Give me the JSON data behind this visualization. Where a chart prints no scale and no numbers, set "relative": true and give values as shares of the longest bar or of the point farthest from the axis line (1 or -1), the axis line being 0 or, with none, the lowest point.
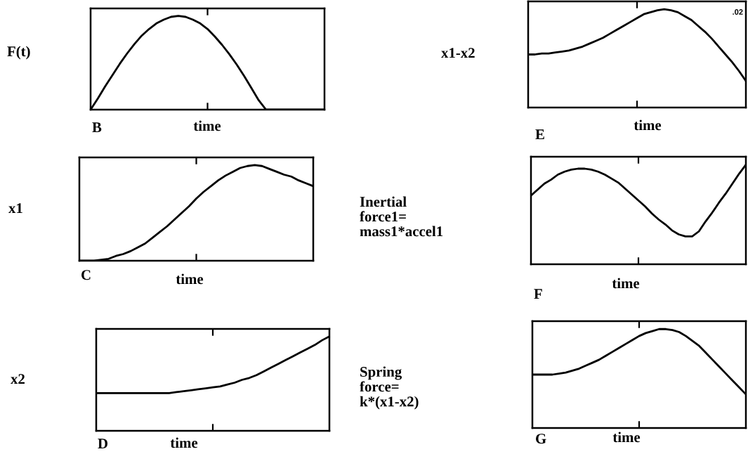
{
  "chart_data": [
    {
      "type": "line",
      "relative": true,
      "ylabel": "F(t)",
      "xlabel": "time",
      "annotations": [
        "B"
      ],
      "categories": [
        null,
        null,
        null,
        null,
        null,
        null,
        null,
        null,
        null,
        null,
        null,
        null,
        null,
        null,
        null,
        null,
        null,
        null,
        null,
        null,
        null,
        null,
        null,
        null,
        null,
        null,
        null,
        null,
        null,
        null,
        null,
        null,
        null
      ],
      "series": [
        {
          "color": "#000000",
          "values": [
            0,
            0.12,
            0.25,
            0.37,
            0.49,
            0.6,
            0.7,
            0.79,
            0.86,
            0.92,
            0.96,
            0.99,
            1,
            0.99,
            0.96,
            0.92,
            0.86,
            0.78,
            0.69,
            0.59,
            0.48,
            0.36,
            0.23,
            0.1,
            0,
            0,
            0,
            0,
            0,
            0,
            0,
            0,
            0
          ]
        }
      ]
    },
    {
      "type": "line",
      "relative": true,
      "ylabel": "x1",
      "xlabel": "time",
      "annotations": [
        "C"
      ],
      "categories": [
        null,
        null,
        null,
        null,
        null,
        null,
        null,
        null,
        null,
        null,
        null,
        null,
        null,
        null,
        null,
        null,
        null,
        null,
        null,
        null,
        null,
        null,
        null,
        null,
        null,
        null,
        null,
        null,
        null,
        null,
        null,
        null,
        null
      ],
      "series": [
        {
          "color": "#000000",
          "values": [
            0,
            0,
            0,
            0.01,
            0.02,
            0.05,
            0.07,
            0.1,
            0.14,
            0.18,
            0.24,
            0.3,
            0.36,
            0.43,
            0.5,
            0.57,
            0.65,
            0.72,
            0.78,
            0.84,
            0.89,
            0.93,
            0.97,
            0.99,
            1,
            0.99,
            0.96,
            0.93,
            0.9,
            0.88,
            0.84,
            0.81,
            0.78
          ]
        }
      ]
    },
    {
      "type": "line",
      "relative": true,
      "ylabel": "x2",
      "xlabel": "time",
      "annotations": [
        "D"
      ],
      "categories": [
        null,
        null,
        null,
        null,
        null,
        null,
        null,
        null,
        null,
        null,
        null,
        null,
        null,
        null,
        null,
        null,
        null,
        null,
        null,
        null,
        null,
        null,
        null,
        null,
        null,
        null,
        null,
        null,
        null,
        null,
        null,
        null,
        null
      ],
      "series": [
        {
          "color": "#000000",
          "values": [
            0.4,
            0.4,
            0.4,
            0.4,
            0.4,
            0.4,
            0.4,
            0.4,
            0.4,
            0.4,
            0.4,
            0.41,
            0.42,
            0.43,
            0.44,
            0.45,
            0.46,
            0.47,
            0.49,
            0.51,
            0.54,
            0.56,
            0.59,
            0.63,
            0.67,
            0.71,
            0.75,
            0.79,
            0.83,
            0.87,
            0.91,
            0.96,
            1
          ]
        }
      ]
    },
    {
      "type": "line",
      "relative": true,
      "ylabel": "x1-x2",
      "xlabel": "time",
      "annotations": [
        "E",
        ".02"
      ],
      "categories": [
        null,
        null,
        null,
        null,
        null,
        null,
        null,
        null,
        null,
        null,
        null,
        null,
        null,
        null,
        null,
        null,
        null,
        null,
        null,
        null,
        null,
        null,
        null,
        null,
        null,
        null,
        null,
        null,
        null,
        null,
        null,
        null,
        null
      ],
      "series": [
        {
          "color": "#000000",
          "values": [
            0.54,
            0.54,
            0.55,
            0.55,
            0.56,
            0.57,
            0.58,
            0.6,
            0.62,
            0.65,
            0.68,
            0.71,
            0.75,
            0.79,
            0.83,
            0.87,
            0.91,
            0.95,
            0.97,
            0.99,
            1,
            0.99,
            0.97,
            0.93,
            0.89,
            0.83,
            0.77,
            0.7,
            0.62,
            0.54,
            0.46,
            0.37,
            0.27
          ]
        }
      ]
    },
    {
      "type": "line",
      "relative": true,
      "ylabel": "Inertial\nforce1=\nmass1*accel1",
      "xlabel": "time",
      "annotations": [
        "F"
      ],
      "categories": [
        null,
        null,
        null,
        null,
        null,
        null,
        null,
        null,
        null,
        null,
        null,
        null,
        null,
        null,
        null,
        null,
        null,
        null,
        null,
        null,
        null,
        null,
        null,
        null,
        null,
        null,
        null,
        null,
        null,
        null,
        null,
        null,
        null
      ],
      "series": [
        {
          "color": "#000000",
          "values": [
            0.69,
            0.75,
            0.81,
            0.85,
            0.9,
            0.93,
            0.95,
            0.96,
            0.96,
            0.95,
            0.93,
            0.9,
            0.86,
            0.82,
            0.76,
            0.7,
            0.64,
            0.58,
            0.51,
            0.45,
            0.4,
            0.34,
            0.3,
            0.28,
            0.28,
            0.33,
            0.43,
            0.52,
            0.62,
            0.71,
            0.81,
            0.91,
            1
          ]
        }
      ]
    },
    {
      "type": "line",
      "relative": true,
      "ylabel": "Spring\nforce=\nk*(x1-x2)",
      "xlabel": "time",
      "annotations": [
        "G"
      ],
      "categories": [
        null,
        null,
        null,
        null,
        null,
        null,
        null,
        null,
        null,
        null,
        null,
        null,
        null,
        null,
        null,
        null,
        null,
        null,
        null,
        null,
        null,
        null,
        null,
        null,
        null,
        null,
        null,
        null,
        null,
        null,
        null,
        null,
        null
      ],
      "series": [
        {
          "color": "#000000",
          "values": [
            0.54,
            0.54,
            0.54,
            0.54,
            0.55,
            0.56,
            0.58,
            0.6,
            0.63,
            0.66,
            0.69,
            0.73,
            0.77,
            0.81,
            0.85,
            0.89,
            0.93,
            0.96,
            0.98,
            1,
            1,
            0.99,
            0.97,
            0.93,
            0.88,
            0.83,
            0.76,
            0.69,
            0.62,
            0.55,
            0.48,
            0.41,
            0.34
          ]
        }
      ]
    }
  ]
}
